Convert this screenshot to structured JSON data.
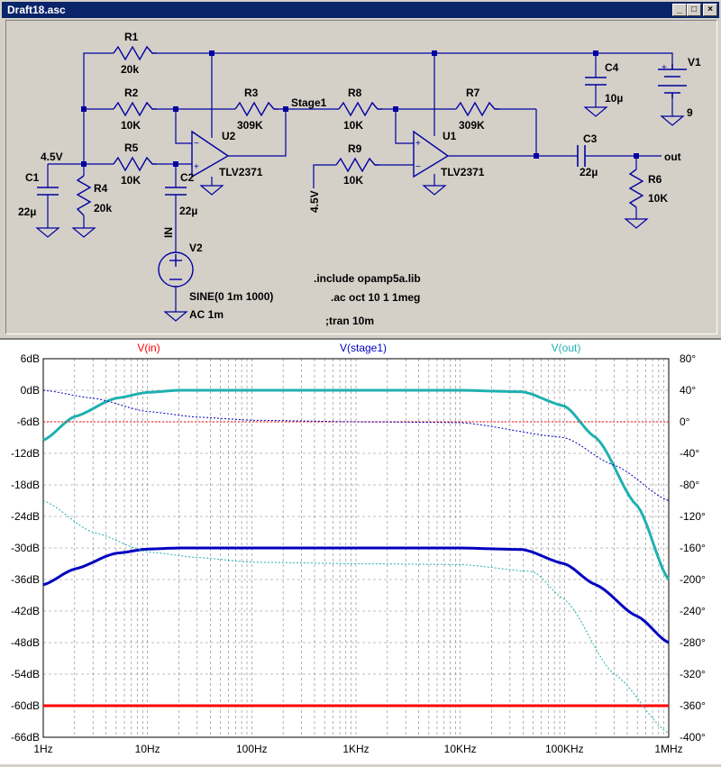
{
  "window": {
    "title": "Draft18.asc",
    "minimize": "_",
    "maximize": "□",
    "close": "×"
  },
  "schematic": {
    "labels": {
      "r1": "R1",
      "r1v": "20k",
      "r2": "R2",
      "r2v": "10K",
      "r3": "R3",
      "r3v": "309K",
      "r4": "R4",
      "r4v": "20k",
      "r5": "R5",
      "r5v": "10K",
      "r6": "R6",
      "r6v": "10K",
      "r7": "R7",
      "r7v": "309K",
      "r8": "R8",
      "r8v": "10K",
      "r9": "R9",
      "r9v": "10K",
      "c1": "C1",
      "c1v": "22µ",
      "c2": "C2",
      "c2v": "22µ",
      "c3": "C3",
      "c3v": "22µ",
      "c4": "C4",
      "c4v": "10µ",
      "u1": "U1",
      "u1v": "TLV2371",
      "u2": "U2",
      "u2v": "TLV2371",
      "v1": "V1",
      "v1v": "9",
      "v2": "V2",
      "v2v1": "SINE(0 1m 1000)",
      "v2v2": "AC 1m",
      "net_stage1": "Stage1",
      "net_out": "out",
      "net_in": "IN",
      "net_45a": "4.5V",
      "net_45b": "4.5V"
    },
    "directives": [
      ".include opamp5a.lib",
      ".ac oct 10 1 1meg",
      ";tran 10m"
    ]
  },
  "plot": {
    "traces": [
      {
        "name": "V(in)",
        "color": "#ff0000"
      },
      {
        "name": "V(stage1)",
        "color": "#0000c0"
      },
      {
        "name": "V(out)",
        "color": "#20b0b0"
      }
    ],
    "left_ticks": [
      "6dB",
      "0dB",
      "-6dB",
      "-12dB",
      "-18dB",
      "-24dB",
      "-30dB",
      "-36dB",
      "-42dB",
      "-48dB",
      "-54dB",
      "-60dB",
      "-66dB"
    ],
    "right_ticks": [
      "80°",
      "40°",
      "0°",
      "-40°",
      "-80°",
      "-120°",
      "-160°",
      "-200°",
      "-240°",
      "-280°",
      "-320°",
      "-360°",
      "-400°"
    ],
    "x_ticks": [
      "1Hz",
      "10Hz",
      "100Hz",
      "1KHz",
      "10KHz",
      "100KHz",
      "1MHz"
    ]
  },
  "chart_data": {
    "type": "line",
    "x_scale": "log",
    "xlim": [
      1,
      1000000
    ],
    "ylim_left": [
      -66,
      6
    ],
    "ylim_right": [
      -400,
      80
    ],
    "grid": true,
    "series": [
      {
        "name": "V(in)",
        "axis": "dB",
        "x": [
          1,
          1000000
        ],
        "values": [
          -60,
          -60
        ]
      },
      {
        "name": "V(stage1)",
        "axis": "dB",
        "x": [
          1,
          2,
          5,
          10,
          20,
          100,
          1000,
          10000,
          40000,
          100000,
          200000,
          500000,
          1000000
        ],
        "values": [
          -37,
          -34,
          -31,
          -30.2,
          -30,
          -30,
          -30,
          -30,
          -30.3,
          -33,
          -37,
          -43,
          -48
        ]
      },
      {
        "name": "V(out)",
        "axis": "dB",
        "x": [
          1,
          2,
          5,
          10,
          20,
          100,
          1000,
          10000,
          40000,
          100000,
          200000,
          500000,
          1000000
        ],
        "values": [
          -9.5,
          -5,
          -1.5,
          -0.4,
          0,
          0,
          0,
          0,
          -0.3,
          -3,
          -9,
          -22,
          -36
        ]
      },
      {
        "name": "V(in)",
        "axis": "phase",
        "x": [
          1,
          1000000
        ],
        "values": [
          0,
          0
        ]
      },
      {
        "name": "V(stage1)",
        "axis": "phase",
        "x": [
          1,
          3,
          10,
          30,
          100,
          1000,
          10000,
          100000,
          300000,
          1000000
        ],
        "values": [
          40,
          30,
          13,
          6,
          2,
          0,
          -1,
          -20,
          -55,
          -100
        ]
      },
      {
        "name": "V(out)",
        "axis": "phase",
        "x": [
          1,
          3,
          10,
          30,
          100,
          1000,
          10000,
          50000,
          100000,
          300000,
          1000000
        ],
        "values": [
          -100,
          -140,
          -165,
          -172,
          -178,
          -180,
          -181,
          -190,
          -225,
          -320,
          -395
        ]
      }
    ]
  }
}
